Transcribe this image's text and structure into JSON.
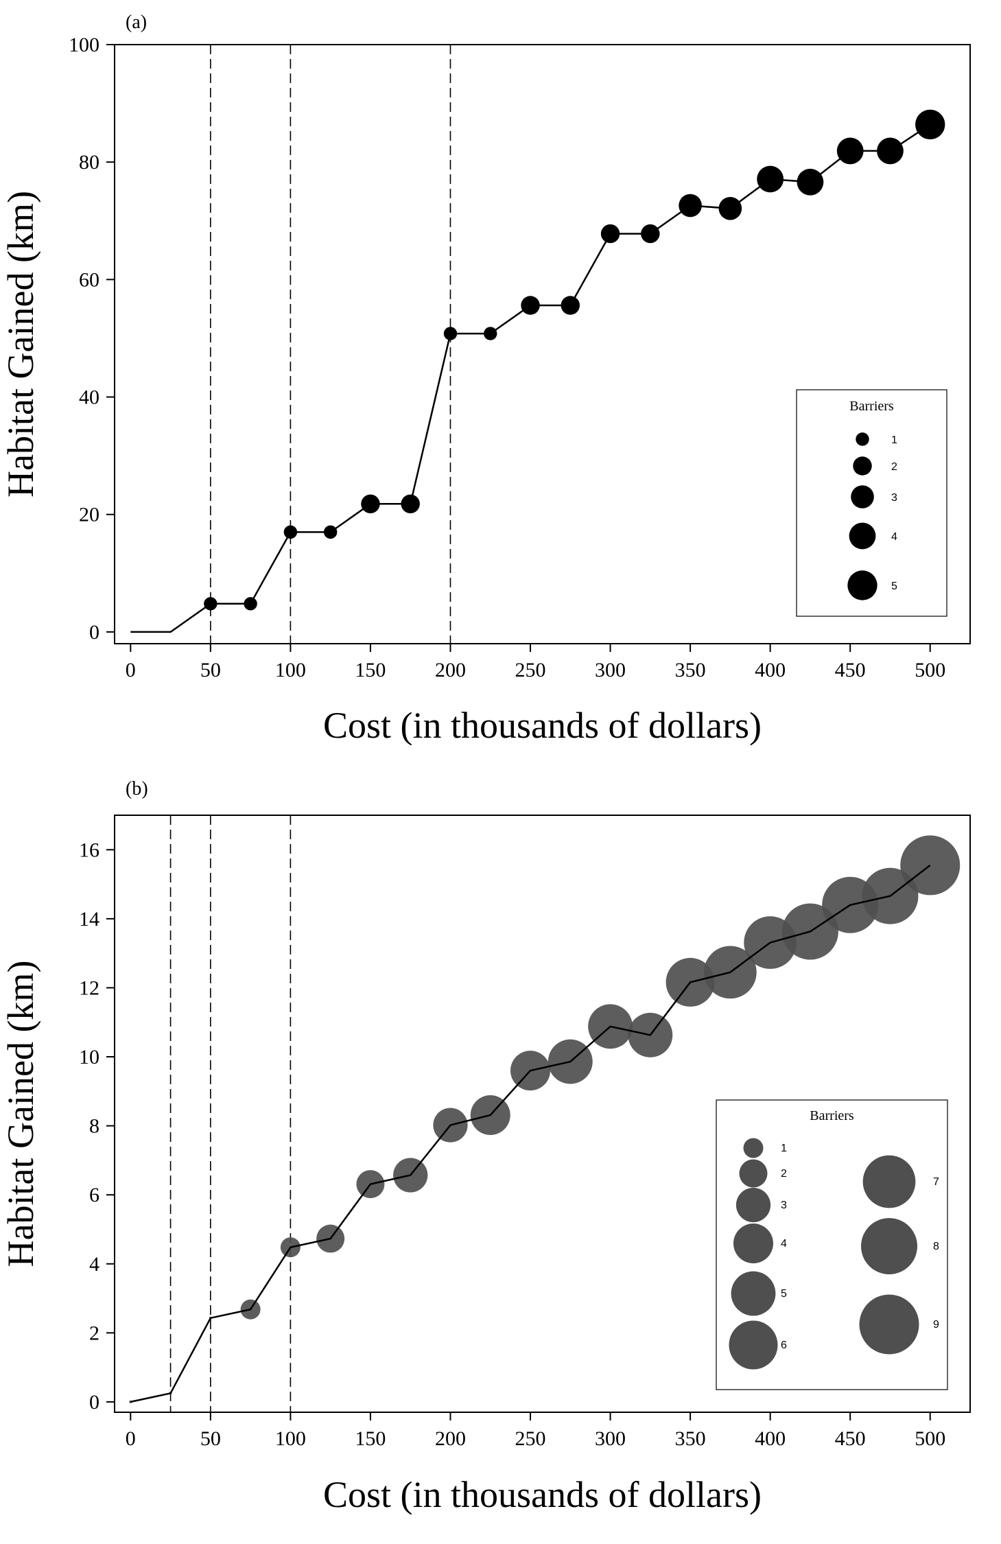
{
  "chart_data": [
    {
      "panel_label": "(a)",
      "type": "line",
      "xlabel": "Cost (in thousands of dollars)",
      "ylabel": "Habitat Gained (km)",
      "xlim": [
        -10,
        525
      ],
      "ylim": [
        -2,
        100
      ],
      "xticks": [
        0,
        50,
        100,
        150,
        200,
        250,
        300,
        350,
        400,
        450,
        500
      ],
      "yticks": [
        0,
        20,
        40,
        60,
        80,
        100
      ],
      "vlines": [
        50,
        100,
        200
      ],
      "marker_color": "#000000",
      "series": [
        {
          "name": "Habitat gained",
          "x": [
            0,
            25,
            50,
            75,
            100,
            125,
            150,
            175,
            200,
            225,
            250,
            275,
            300,
            325,
            350,
            375,
            400,
            425,
            450,
            475,
            500
          ],
          "y": [
            0,
            0,
            4.8,
            4.8,
            17,
            17,
            21.8,
            21.8,
            50.8,
            50.8,
            55.6,
            55.6,
            67.8,
            67.8,
            72.6,
            72.1,
            77.1,
            76.6,
            81.9,
            81.9,
            86.4
          ],
          "barriers": [
            0,
            0,
            1,
            1,
            1,
            1,
            2,
            2,
            1,
            1,
            2,
            2,
            2,
            2,
            3,
            3,
            4,
            4,
            4,
            4,
            5
          ]
        }
      ],
      "legend": {
        "title": "Barriers",
        "position": "lower-right",
        "entries": [
          "1",
          "2",
          "3",
          "4",
          "5"
        ]
      }
    },
    {
      "panel_label": "(b)",
      "type": "line",
      "xlabel": "Cost (in thousands of dollars)",
      "ylabel": "Habitat Gained (km)",
      "xlim": [
        -10,
        525
      ],
      "ylim": [
        -0.3,
        17
      ],
      "xticks": [
        0,
        50,
        100,
        150,
        200,
        250,
        300,
        350,
        400,
        450,
        500
      ],
      "yticks": [
        0,
        2,
        4,
        6,
        8,
        10,
        12,
        14,
        16
      ],
      "vlines": [
        25,
        50,
        100
      ],
      "marker_color": "#4f4f4f",
      "series": [
        {
          "name": "Habitat gained",
          "x": [
            0,
            25,
            50,
            75,
            100,
            125,
            150,
            175,
            200,
            225,
            250,
            275,
            300,
            325,
            350,
            375,
            400,
            425,
            450,
            475,
            500
          ],
          "y": [
            0,
            0.25,
            2.43,
            2.68,
            4.48,
            4.73,
            6.31,
            6.57,
            8.02,
            8.31,
            9.6,
            9.86,
            10.88,
            10.63,
            12.16,
            12.45,
            13.31,
            13.63,
            14.4,
            14.66,
            15.55
          ],
          "barriers": [
            0,
            0,
            0,
            1,
            1,
            2,
            2,
            3,
            3,
            4,
            4,
            5,
            5,
            5,
            6,
            7,
            7,
            8,
            8,
            8,
            9
          ]
        }
      ],
      "legend": {
        "title": "Barriers",
        "position": "lower-right",
        "entries": [
          "1",
          "2",
          "3",
          "4",
          "5",
          "6",
          "7",
          "8",
          "9"
        ]
      }
    }
  ]
}
